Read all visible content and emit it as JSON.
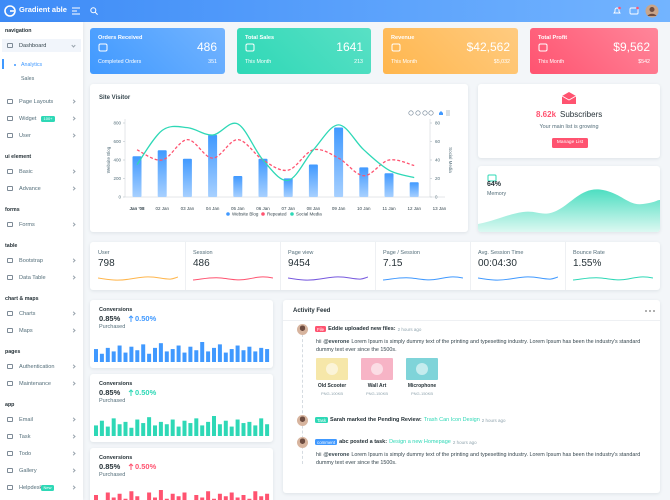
{
  "header": {
    "logo": "Gradient able"
  },
  "sidebar": [
    {
      "title": "navigation",
      "items": [
        {
          "label": "Dashboard",
          "children": [
            "Analytics",
            "Sales"
          ]
        },
        {
          "label": "Page Layouts"
        },
        {
          "label": "Widget",
          "badge": "100+"
        },
        {
          "label": "User"
        }
      ]
    },
    {
      "title": "ui element",
      "items": [
        {
          "label": "Basic"
        },
        {
          "label": "Advance"
        }
      ]
    },
    {
      "title": "forms",
      "items": [
        {
          "label": "Forms"
        }
      ]
    },
    {
      "title": "table",
      "items": [
        {
          "label": "Bootstrap"
        },
        {
          "label": "Data Table"
        }
      ]
    },
    {
      "title": "chart & maps",
      "items": [
        {
          "label": "Charts"
        },
        {
          "label": "Maps"
        }
      ]
    },
    {
      "title": "pages",
      "items": [
        {
          "label": "Authentication"
        },
        {
          "label": "Maintenance"
        }
      ]
    },
    {
      "title": "app",
      "items": [
        {
          "label": "Email"
        },
        {
          "label": "Task"
        },
        {
          "label": "Todo"
        },
        {
          "label": "Gallery"
        },
        {
          "label": "Helpdesk",
          "badge": "New"
        }
      ]
    }
  ],
  "stat_cards": [
    {
      "title": "Orders Received",
      "value": "486",
      "footer_label": "Completed Orders",
      "footer_value": "351"
    },
    {
      "title": "Total Sales",
      "value": "1641",
      "footer_label": "This Month",
      "footer_value": "213"
    },
    {
      "title": "Revenue",
      "value": "$42,562",
      "footer_label": "This Month",
      "footer_value": "$5,032"
    },
    {
      "title": "Total Profit",
      "value": "$9,562",
      "footer_label": "This Month",
      "footer_value": "$542"
    }
  ],
  "chart_data": {
    "type": "bar",
    "title": "Site Visitor",
    "categories": [
      "Jan '08",
      "02 Jan",
      "03 Jan",
      "04 Jan",
      "05 Jan",
      "06 Jan",
      "07 Jan",
      "08 Jan",
      "09 Jan",
      "10 Jan",
      "11 Jan",
      "12 Jan",
      "13 Jan"
    ],
    "series": [
      {
        "name": "Website Blog",
        "type": "bar",
        "color": "#4099ff",
        "values": [
          440,
          505,
          414,
          671,
          227,
          413,
          201,
          352,
          752,
          320,
          257,
          160,
          null
        ]
      },
      {
        "name": "Repeated",
        "type": "line",
        "dashed": true,
        "axis": "y2",
        "color": "#ff5370",
        "values": [
          51,
          40,
          62,
          42,
          62,
          40,
          29,
          51,
          42,
          23,
          40,
          34,
          null
        ]
      },
      {
        "name": "Social Media",
        "type": "line",
        "axis": "y2",
        "color": "#2ed8b6",
        "values": [
          35,
          72,
          75,
          67,
          79,
          40,
          18,
          51,
          78,
          51,
          29,
          21,
          null
        ]
      }
    ],
    "ylabel": "Website Blog",
    "y2label": "Social Media",
    "ylim": [
      0,
      800
    ],
    "yticks": [
      0,
      200,
      400,
      600,
      800
    ],
    "y2lim": [
      0,
      80
    ],
    "y2ticks": [
      0,
      20,
      40,
      60,
      80
    ],
    "grid": false,
    "legend": "bottom"
  },
  "subscribers": {
    "value": "8.62k",
    "label": "Subscribers",
    "text": "Your main list is growing",
    "button": "Manage List"
  },
  "memory": {
    "value": "64%",
    "label": "Memory"
  },
  "stats": [
    {
      "label": "User",
      "value": "798",
      "color": "#ffb64d"
    },
    {
      "label": "Session",
      "value": "486",
      "color": "#ff5370"
    },
    {
      "label": "Page view",
      "value": "9454",
      "color": "#7759de"
    },
    {
      "label": "Page / Session",
      "value": "7.15",
      "color": "#4099ff"
    },
    {
      "label": "Avg. Session Time",
      "value": "00:04:30",
      "color": "#4099ff"
    },
    {
      "label": "Bounce Rate",
      "value": "1.55%",
      "color": "#2ed8b6"
    }
  ],
  "conversions": [
    {
      "title": "Conversions",
      "value": "0.85%",
      "change": "0.50%",
      "label": "Purchased",
      "color": "#4099ff",
      "bars": [
        55,
        35,
        60,
        45,
        70,
        40,
        65,
        50,
        75,
        35,
        60,
        80,
        45,
        55,
        70,
        40,
        65,
        50,
        85,
        45,
        60,
        75,
        40,
        55,
        70,
        50,
        65,
        45,
        60,
        55
      ]
    },
    {
      "title": "Conversions",
      "value": "0.85%",
      "change": "0.50%",
      "label": "Purchased",
      "color": "#2ed8b6",
      "bars": [
        45,
        65,
        40,
        75,
        50,
        60,
        35,
        70,
        55,
        80,
        45,
        60,
        50,
        70,
        40,
        65,
        55,
        75,
        45,
        60,
        85,
        50,
        65,
        40,
        70,
        55,
        60,
        45,
        75,
        50
      ]
    },
    {
      "title": "Conversions",
      "value": "0.85%",
      "change": "0.50%",
      "label": "Purchased",
      "color": "#ff5370",
      "bars": [
        60,
        40,
        70,
        50,
        65,
        45,
        75,
        55,
        40,
        70,
        50,
        80,
        45,
        65,
        55,
        70,
        40,
        60,
        50,
        75,
        45,
        65,
        55,
        70,
        50,
        60,
        45,
        75,
        55,
        65
      ]
    }
  ],
  "activity_feed": {
    "title": "Activity Feed",
    "items": [
      {
        "badge": "File",
        "text": "Eddie uploaded new files:",
        "time": "2 hours ago",
        "message": {
          "prefix": "hii",
          "mention": "@everone",
          "body": "Lorem Ipsum is simply dummy text of the printing and typesetting industry. Lorem Ipsum has been the industry's standard dummy text ever since the 1500s."
        },
        "files": [
          {
            "name": "Old Scooter",
            "meta": "PNG-100KB"
          },
          {
            "name": "Wall Art",
            "meta": "PNG-150KB"
          },
          {
            "name": "Microphone",
            "meta": "PNG-150KB"
          }
        ]
      },
      {
        "badge": "Task",
        "text": "Sarah marked the Pending Review:",
        "link": "Trash Can Icon Design",
        "time": "2 hours ago"
      },
      {
        "badge": "comment",
        "text": "abc posted a task:",
        "link": "Design a new Homepage",
        "time": "2 hours ago",
        "message": {
          "prefix": "hii",
          "mention": "@everone",
          "body": "Lorem Ipsum is simply dummy text of the printing and typesetting industry. Lorem Ipsum has been the industry's standard dummy text ever since the 1500s."
        }
      }
    ]
  }
}
